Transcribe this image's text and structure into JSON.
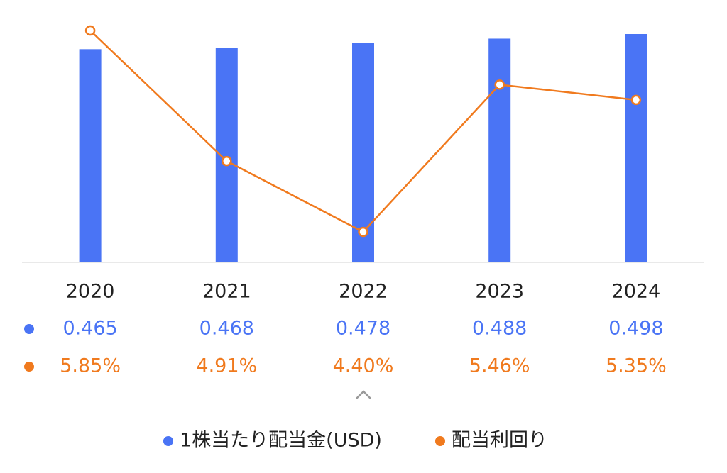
{
  "chart_data": {
    "type": "bar",
    "categories": [
      "2020",
      "2021",
      "2022",
      "2023",
      "2024"
    ],
    "series": [
      {
        "name": "1株当たり配当金(USD)",
        "color": "#4a74f5",
        "values": [
          0.465,
          0.468,
          0.478,
          0.488,
          0.498
        ]
      },
      {
        "name": "配当利回り",
        "color": "#f07a1e",
        "type": "line",
        "values": [
          5.85,
          4.91,
          4.4,
          5.46,
          5.35
        ],
        "value_labels": [
          "5.85%",
          "4.91%",
          "4.40%",
          "5.46%",
          "5.35%"
        ]
      }
    ]
  }
}
